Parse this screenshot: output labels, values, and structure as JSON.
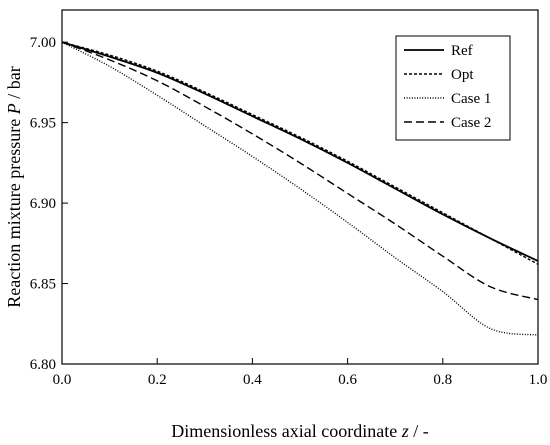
{
  "chart_data": {
    "type": "line",
    "title": "",
    "xlabel": {
      "prefix": "Dimensionless axial coordinate ",
      "var": "z",
      "suffix": " / -"
    },
    "ylabel": {
      "prefix": "Reaction mixture pressure ",
      "var": "P",
      "suffix": " / bar"
    },
    "xlim": [
      0.0,
      1.0
    ],
    "ylim": [
      6.8,
      7.02
    ],
    "xticks": [
      "0.0",
      "0.2",
      "0.4",
      "0.6",
      "0.8",
      "1.0"
    ],
    "yticks": [
      "6.80",
      "6.85",
      "6.90",
      "6.95",
      "7.00"
    ],
    "legend_position": "top-right",
    "grid": false,
    "x": [
      0.0,
      0.1,
      0.2,
      0.3,
      0.4,
      0.5,
      0.6,
      0.7,
      0.8,
      0.9,
      1.0
    ],
    "series": [
      {
        "name": "Ref",
        "style": "solid",
        "values": [
          7.0,
          6.991,
          6.981,
          6.968,
          6.954,
          6.94,
          6.925,
          6.909,
          6.893,
          6.878,
          6.864
        ]
      },
      {
        "name": "Opt",
        "style": "short-dash",
        "values": [
          7.0,
          6.992,
          6.982,
          6.969,
          6.955,
          6.941,
          6.926,
          6.91,
          6.894,
          6.878,
          6.862
        ]
      },
      {
        "name": "Case 1",
        "style": "dotted",
        "values": [
          7.0,
          6.985,
          6.967,
          6.948,
          6.929,
          6.909,
          6.888,
          6.866,
          6.845,
          6.822,
          6.818
        ]
      },
      {
        "name": "Case 2",
        "style": "long-dash",
        "values": [
          7.0,
          6.989,
          6.976,
          6.96,
          6.943,
          6.925,
          6.906,
          6.887,
          6.867,
          6.848,
          6.84
        ]
      }
    ]
  }
}
